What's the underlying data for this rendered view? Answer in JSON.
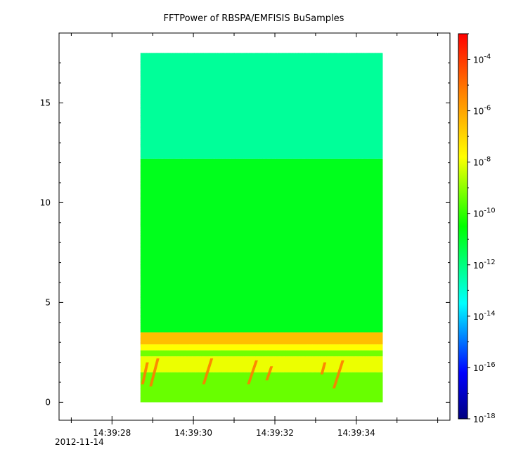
{
  "chart_data": {
    "type": "heatmap",
    "title": "FFTPower of RBSPA/EMFISIS  BuSamples",
    "xlabel": "",
    "ylabel": "",
    "x_tick_labels": [
      "14:39:28",
      "14:39:30",
      "14:39:32",
      "14:39:34"
    ],
    "x_tick_values_s": [
      28,
      30,
      32,
      34
    ],
    "x_date_label": "2012-11-14",
    "xlim_s": [
      26.7,
      36.3
    ],
    "y_tick_labels": [
      "0",
      "5",
      "10",
      "15"
    ],
    "y_tick_values": [
      0,
      5,
      10,
      15
    ],
    "ylim": [
      -0.9,
      18.5
    ],
    "data_extent": {
      "t_start_s": 28.7,
      "t_end_s": 34.65,
      "f_min": 0,
      "f_max": 17.5
    },
    "colorbar": {
      "scale": "log",
      "range": [
        1e-18,
        0.001
      ],
      "tick_labels": [
        "10^-18",
        "10^-16",
        "10^-14",
        "10^-12",
        "10^-10",
        "10^-8",
        "10^-6",
        "10^-4"
      ],
      "tick_exponents": [
        -18,
        -16,
        -14,
        -12,
        -10,
        -8,
        -6,
        -4
      ],
      "colormap": "rainbow"
    },
    "regions": [
      {
        "f_from": 12.2,
        "f_to": 17.5,
        "log_power": -12.3
      },
      {
        "f_from": 3.5,
        "f_to": 12.2,
        "log_power": -10.8
      },
      {
        "f_from": 2.9,
        "f_to": 3.5,
        "log_power": -6.5
      },
      {
        "f_from": 2.6,
        "f_to": 2.9,
        "log_power": -7.8
      },
      {
        "f_from": 2.3,
        "f_to": 2.6,
        "log_power": -9.3
      },
      {
        "f_from": 1.5,
        "f_to": 2.3,
        "log_power": -8.0
      },
      {
        "f_from": 0,
        "f_to": 1.5,
        "log_power": -9.4
      }
    ],
    "chorus_elements": [
      {
        "t": 28.75,
        "f_low": 0.9,
        "f_high": 2.0,
        "dt": 0.12
      },
      {
        "t": 28.95,
        "f_low": 0.8,
        "f_high": 2.2,
        "dt": 0.18
      },
      {
        "t": 30.25,
        "f_low": 0.9,
        "f_high": 2.2,
        "dt": 0.2
      },
      {
        "t": 31.35,
        "f_low": 0.9,
        "f_high": 2.1,
        "dt": 0.2
      },
      {
        "t": 31.8,
        "f_low": 1.1,
        "f_high": 1.8,
        "dt": 0.12
      },
      {
        "t": 33.15,
        "f_low": 1.4,
        "f_high": 2.0,
        "dt": 0.08
      },
      {
        "t": 33.45,
        "f_low": 0.7,
        "f_high": 2.1,
        "dt": 0.22
      }
    ],
    "grid": false,
    "legend": "none"
  }
}
